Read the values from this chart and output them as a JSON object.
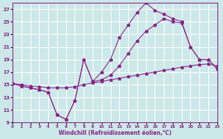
{
  "xlabel": "Windchill (Refroidissement éolien,°C)",
  "xlim": [
    0,
    23
  ],
  "ylim": [
    9,
    28
  ],
  "yticks": [
    9,
    11,
    13,
    15,
    17,
    19,
    21,
    23,
    25,
    27
  ],
  "xticks": [
    0,
    1,
    2,
    3,
    4,
    5,
    6,
    7,
    8,
    9,
    10,
    11,
    12,
    13,
    14,
    15,
    16,
    17,
    18,
    19,
    20,
    21,
    22,
    23
  ],
  "background_color": "#cce8e8",
  "grid_color": "#ffffff",
  "line_color": "#882288",
  "series1": {
    "x": [
      0,
      1,
      2,
      3,
      4,
      5,
      6,
      7,
      8,
      9,
      10,
      11,
      12,
      13,
      14,
      15,
      16,
      17,
      18,
      19,
      20,
      21,
      22,
      23
    ],
    "y": [
      15.2,
      15.0,
      14.8,
      14.7,
      14.5,
      14.5,
      14.5,
      14.7,
      15.0,
      15.3,
      15.5,
      15.8,
      16.0,
      16.3,
      16.5,
      16.8,
      17.0,
      17.3,
      17.5,
      17.8,
      18.0,
      18.2,
      18.3,
      18.0
    ]
  },
  "series2": {
    "x": [
      0,
      1,
      2,
      3,
      4,
      5,
      6,
      7,
      8,
      9,
      10,
      11,
      12,
      13,
      14,
      15,
      16,
      17,
      18,
      19,
      20,
      21,
      22,
      23
    ],
    "y": [
      15.2,
      14.8,
      14.5,
      14.2,
      13.8,
      10.2,
      9.5,
      12.5,
      19.0,
      15.5,
      17.0,
      19.0,
      22.5,
      24.5,
      26.5,
      28.0,
      26.8,
      26.2,
      25.5,
      25.0,
      21.0,
      19.0,
      19.0,
      17.5
    ]
  },
  "series3": {
    "x": [
      0,
      1,
      2,
      3,
      4,
      5,
      6,
      7,
      8,
      9,
      10,
      11,
      12,
      13,
      14,
      15,
      16,
      17,
      18,
      19,
      20,
      21,
      22,
      23
    ],
    "y": [
      15.2,
      14.8,
      14.5,
      14.2,
      13.8,
      10.2,
      9.5,
      12.5,
      19.0,
      15.5,
      15.8,
      16.5,
      18.0,
      20.0,
      22.0,
      23.5,
      24.5,
      25.5,
      25.0,
      24.8,
      21.0,
      19.0,
      19.0,
      17.5
    ]
  }
}
